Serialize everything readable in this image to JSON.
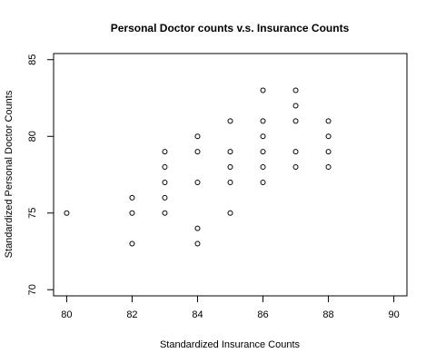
{
  "chart_data": {
    "type": "scatter",
    "title": "Personal Doctor counts v.s. Insurance Counts",
    "xlabel": "Standardized Insurance Counts",
    "ylabel": "Standardized Personal Doctor Counts",
    "xlim": [
      79.6,
      90.4
    ],
    "ylim": [
      69.6,
      85.4
    ],
    "xticks": [
      80,
      82,
      84,
      86,
      88,
      90
    ],
    "yticks": [
      70,
      75,
      80,
      85
    ],
    "grid": false,
    "legend": "none",
    "marker": "open-circle",
    "points": [
      [
        80,
        75
      ],
      [
        82,
        76
      ],
      [
        82,
        75
      ],
      [
        82,
        73
      ],
      [
        83,
        79
      ],
      [
        83,
        78
      ],
      [
        83,
        77
      ],
      [
        83,
        76
      ],
      [
        83,
        75
      ],
      [
        84,
        80
      ],
      [
        84,
        79
      ],
      [
        84,
        77
      ],
      [
        84,
        74
      ],
      [
        84,
        73
      ],
      [
        85,
        81
      ],
      [
        85,
        79
      ],
      [
        85,
        78
      ],
      [
        85,
        77
      ],
      [
        85,
        75
      ],
      [
        86,
        83
      ],
      [
        86,
        81
      ],
      [
        86,
        80
      ],
      [
        86,
        79
      ],
      [
        86,
        78
      ],
      [
        86,
        77
      ],
      [
        87,
        83
      ],
      [
        87,
        82
      ],
      [
        87,
        81
      ],
      [
        87,
        79
      ],
      [
        87,
        78
      ],
      [
        88,
        81
      ],
      [
        88,
        80
      ],
      [
        88,
        79
      ],
      [
        88,
        78
      ]
    ]
  }
}
